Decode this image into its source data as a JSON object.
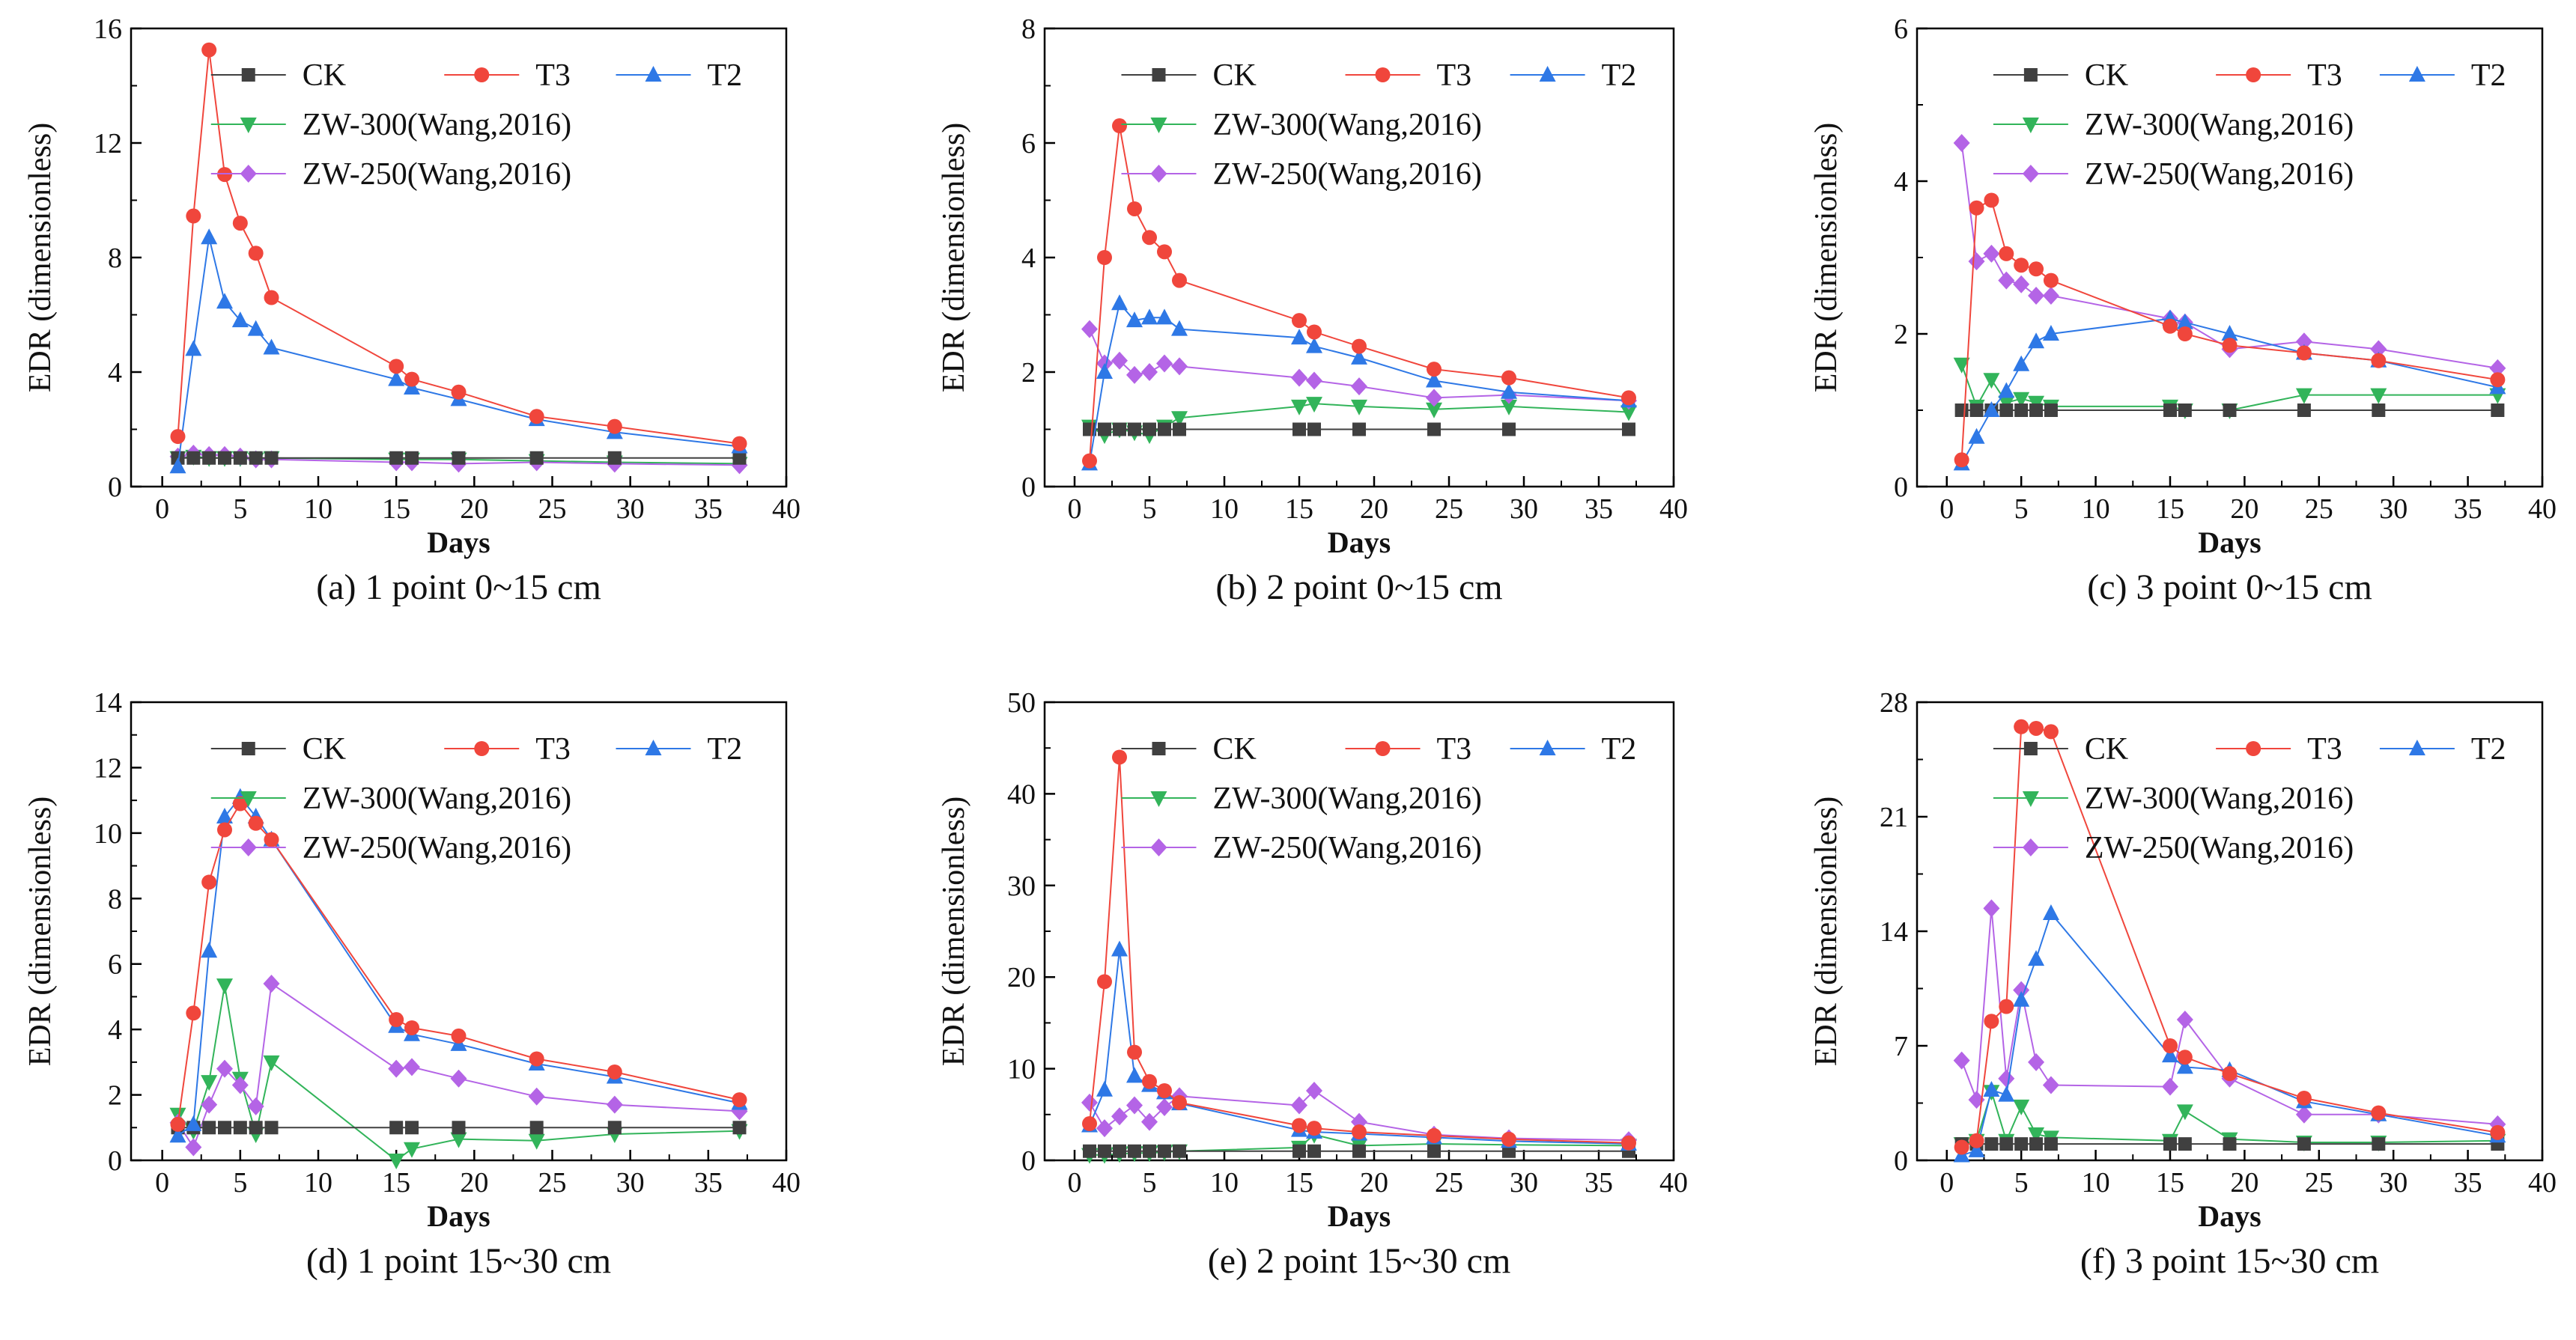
{
  "legend_labels": [
    "CK",
    "T3",
    "T2",
    "ZW-300(Wang,2016)",
    "ZW-250(Wang,2016)"
  ],
  "colors": {
    "CK": "#404040",
    "T3": "#f0463c",
    "T2": "#2e78e6",
    "ZW300": "#32b45a",
    "ZW250": "#b464e6"
  },
  "chart_data": [
    {
      "type": "line",
      "caption": "(a) 1 point 0~15 cm",
      "xlabel": "Days",
      "ylabel": "EDR (dimensionless)",
      "xlim": [
        -2,
        40
      ],
      "ylim": [
        0,
        16
      ],
      "xticks": [
        0,
        5,
        10,
        15,
        20,
        25,
        30,
        35,
        40
      ],
      "yticks": [
        0,
        4,
        8,
        12,
        16
      ],
      "series": [
        {
          "name": "CK",
          "x": [
            1,
            2,
            3,
            4,
            5,
            6,
            7,
            15,
            16,
            19,
            24,
            29,
            37
          ],
          "y": [
            1,
            1,
            1,
            1,
            1,
            1,
            1,
            1,
            1,
            1,
            1,
            1,
            1
          ]
        },
        {
          "name": "T3",
          "x": [
            1,
            2,
            3,
            4,
            5,
            6,
            7,
            15,
            16,
            19,
            24,
            29,
            37
          ],
          "y": [
            1.75,
            9.45,
            15.25,
            10.9,
            9.2,
            8.15,
            6.6,
            4.2,
            3.75,
            3.3,
            2.45,
            2.1,
            1.5
          ]
        },
        {
          "name": "T2",
          "x": [
            1,
            2,
            3,
            4,
            5,
            6,
            7,
            15,
            16,
            19,
            24,
            29,
            37
          ],
          "y": [
            0.7,
            4.8,
            8.7,
            6.45,
            5.8,
            5.5,
            4.85,
            3.75,
            3.45,
            3.05,
            2.35,
            1.9,
            1.4
          ]
        },
        {
          "name": "ZW-300(Wang,2016)",
          "x": [
            1,
            2,
            3,
            4,
            5,
            6,
            7,
            15,
            16,
            19,
            24,
            29,
            37
          ],
          "y": [
            1.0,
            1.05,
            1.0,
            1.0,
            1.0,
            0.95,
            1.0,
            0.95,
            0.95,
            0.95,
            0.9,
            0.85,
            0.8
          ]
        },
        {
          "name": "ZW-250(Wang,2016)",
          "x": [
            1,
            2,
            3,
            4,
            5,
            6,
            7,
            15,
            16,
            19,
            24,
            29,
            37
          ],
          "y": [
            1.05,
            1.15,
            1.1,
            1.1,
            1.05,
            0.95,
            0.95,
            0.85,
            0.85,
            0.8,
            0.85,
            0.8,
            0.75
          ]
        }
      ]
    },
    {
      "type": "line",
      "caption": "(b) 2 point 0~15 cm",
      "xlabel": "Days",
      "ylabel": "EDR (dimensionless)",
      "xlim": [
        -2,
        40
      ],
      "ylim": [
        0,
        8
      ],
      "xticks": [
        0,
        5,
        10,
        15,
        20,
        25,
        30,
        35,
        40
      ],
      "yticks": [
        0,
        2,
        4,
        6,
        8
      ],
      "series": [
        {
          "name": "CK",
          "x": [
            1,
            2,
            3,
            4,
            5,
            6,
            7,
            15,
            16,
            19,
            24,
            29,
            37
          ],
          "y": [
            1,
            1,
            1,
            1,
            1,
            1,
            1,
            1,
            1,
            1,
            1,
            1,
            1
          ]
        },
        {
          "name": "T3",
          "x": [
            1,
            2,
            3,
            4,
            5,
            6,
            7,
            15,
            16,
            19,
            24,
            29,
            37
          ],
          "y": [
            0.45,
            4.0,
            6.3,
            4.85,
            4.35,
            4.1,
            3.6,
            2.9,
            2.7,
            2.45,
            2.05,
            1.9,
            1.55
          ]
        },
        {
          "name": "T2",
          "x": [
            1,
            2,
            3,
            4,
            5,
            6,
            7,
            15,
            16,
            19,
            24,
            29,
            37
          ],
          "y": [
            0.4,
            2.0,
            3.2,
            2.9,
            2.95,
            2.95,
            2.75,
            2.6,
            2.45,
            2.25,
            1.85,
            1.65,
            1.5
          ]
        },
        {
          "name": "ZW-300(Wang,2016)",
          "x": [
            1,
            2,
            3,
            4,
            5,
            6,
            7,
            15,
            16,
            19,
            24,
            29,
            37
          ],
          "y": [
            1.05,
            0.9,
            1.0,
            0.95,
            0.9,
            1.05,
            1.2,
            1.4,
            1.45,
            1.4,
            1.35,
            1.4,
            1.3
          ]
        },
        {
          "name": "ZW-250(Wang,2016)",
          "x": [
            1,
            2,
            3,
            4,
            5,
            6,
            7,
            15,
            16,
            19,
            24,
            29,
            37
          ],
          "y": [
            2.75,
            2.15,
            2.2,
            1.95,
            2.0,
            2.15,
            2.1,
            1.9,
            1.85,
            1.75,
            1.55,
            1.6,
            1.5
          ]
        }
      ]
    },
    {
      "type": "line",
      "caption": "(c) 3 point 0~15 cm",
      "xlabel": "Days",
      "ylabel": "EDR (dimensionless)",
      "xlim": [
        -2,
        40
      ],
      "ylim": [
        0,
        6
      ],
      "xticks": [
        0,
        5,
        10,
        15,
        20,
        25,
        30,
        35,
        40
      ],
      "yticks": [
        0,
        2,
        4,
        6
      ],
      "series": [
        {
          "name": "CK",
          "x": [
            1,
            2,
            3,
            4,
            5,
            6,
            7,
            15,
            16,
            19,
            24,
            29,
            37
          ],
          "y": [
            1,
            1,
            1,
            1,
            1,
            1,
            1,
            1,
            1,
            1,
            1,
            1,
            1
          ]
        },
        {
          "name": "T3",
          "x": [
            1,
            2,
            3,
            4,
            5,
            6,
            7,
            15,
            16,
            19,
            24,
            29,
            37
          ],
          "y": [
            0.35,
            3.65,
            3.75,
            3.05,
            2.9,
            2.85,
            2.7,
            2.1,
            2.0,
            1.85,
            1.75,
            1.65,
            1.4
          ]
        },
        {
          "name": "T2",
          "x": [
            1,
            2,
            3,
            4,
            5,
            6,
            7,
            15,
            16,
            19,
            24,
            29,
            37
          ],
          "y": [
            0.3,
            0.65,
            1.0,
            1.25,
            1.6,
            1.9,
            2.0,
            2.2,
            2.15,
            2.0,
            1.75,
            1.65,
            1.3
          ]
        },
        {
          "name": "ZW-300(Wang,2016)",
          "x": [
            1,
            2,
            3,
            4,
            5,
            6,
            7,
            15,
            16,
            19,
            24,
            29,
            37
          ],
          "y": [
            1.6,
            1.05,
            1.4,
            1.1,
            1.15,
            1.1,
            1.05,
            1.05,
            1.0,
            1.0,
            1.2,
            1.2,
            1.2
          ]
        },
        {
          "name": "ZW-250(Wang,2016)",
          "x": [
            1,
            2,
            3,
            4,
            5,
            6,
            7,
            15,
            16,
            19,
            24,
            29,
            37
          ],
          "y": [
            4.5,
            2.95,
            3.05,
            2.7,
            2.65,
            2.5,
            2.5,
            2.2,
            2.15,
            1.8,
            1.9,
            1.8,
            1.55
          ]
        }
      ]
    },
    {
      "type": "line",
      "caption": "(d) 1 point 15~30 cm",
      "xlabel": "Days",
      "ylabel": "EDR (dimensionless)",
      "xlim": [
        -2,
        40
      ],
      "ylim": [
        0,
        14
      ],
      "xticks": [
        0,
        5,
        10,
        15,
        20,
        25,
        30,
        35,
        40
      ],
      "yticks": [
        0,
        2,
        4,
        6,
        8,
        10,
        12,
        14
      ],
      "series": [
        {
          "name": "CK",
          "x": [
            1,
            2,
            3,
            4,
            5,
            6,
            7,
            15,
            16,
            19,
            24,
            29,
            37
          ],
          "y": [
            1,
            1,
            1,
            1,
            1,
            1,
            1,
            1,
            1,
            1,
            1,
            1,
            1
          ]
        },
        {
          "name": "T3",
          "x": [
            1,
            2,
            3,
            4,
            5,
            6,
            7,
            15,
            16,
            19,
            24,
            29,
            37
          ],
          "y": [
            1.1,
            4.5,
            8.5,
            10.1,
            10.9,
            10.3,
            9.8,
            4.3,
            4.05,
            3.8,
            3.1,
            2.7,
            1.85
          ]
        },
        {
          "name": "T2",
          "x": [
            1,
            2,
            3,
            4,
            5,
            6,
            7,
            15,
            16,
            19,
            24,
            29,
            37
          ],
          "y": [
            0.75,
            1.1,
            6.4,
            10.5,
            11.1,
            10.5,
            9.8,
            4.1,
            3.85,
            3.55,
            2.95,
            2.55,
            1.75
          ]
        },
        {
          "name": "ZW-300(Wang,2016)",
          "x": [
            1,
            2,
            3,
            4,
            5,
            6,
            7,
            15,
            16,
            19,
            24,
            29,
            37
          ],
          "y": [
            1.4,
            0.9,
            2.4,
            5.35,
            2.5,
            0.8,
            3.0,
            0.0,
            0.35,
            0.65,
            0.6,
            0.8,
            0.9
          ]
        },
        {
          "name": "ZW-250(Wang,2016)",
          "x": [
            1,
            2,
            3,
            4,
            5,
            6,
            7,
            15,
            16,
            19,
            24,
            29,
            37
          ],
          "y": [
            1.15,
            0.4,
            1.7,
            2.8,
            2.3,
            1.65,
            5.4,
            2.8,
            2.85,
            2.5,
            1.95,
            1.7,
            1.5
          ]
        }
      ]
    },
    {
      "type": "line",
      "caption": "(e) 2 point 15~30 cm",
      "xlabel": "Days",
      "ylabel": "EDR (dimensionless)",
      "xlim": [
        -2,
        40
      ],
      "ylim": [
        0,
        50
      ],
      "xticks": [
        0,
        5,
        10,
        15,
        20,
        25,
        30,
        35,
        40
      ],
      "yticks": [
        0,
        10,
        20,
        30,
        40,
        50
      ],
      "series": [
        {
          "name": "CK",
          "x": [
            1,
            2,
            3,
            4,
            5,
            6,
            7,
            15,
            16,
            19,
            24,
            29,
            37
          ],
          "y": [
            1,
            1,
            1,
            1,
            1,
            1,
            1,
            1,
            1,
            1,
            1,
            1,
            1
          ]
        },
        {
          "name": "T3",
          "x": [
            1,
            2,
            3,
            4,
            5,
            6,
            7,
            15,
            16,
            19,
            24,
            29,
            37
          ],
          "y": [
            4.0,
            19.5,
            44.0,
            11.8,
            8.6,
            7.6,
            6.3,
            3.8,
            3.5,
            3.1,
            2.7,
            2.3,
            1.9
          ]
        },
        {
          "name": "T2",
          "x": [
            1,
            2,
            3,
            4,
            5,
            6,
            7,
            15,
            16,
            19,
            24,
            29,
            37
          ],
          "y": [
            3.8,
            7.7,
            23.0,
            9.2,
            8.2,
            7.4,
            6.2,
            3.3,
            3.1,
            2.9,
            2.5,
            2.1,
            1.8
          ]
        },
        {
          "name": "ZW-300(Wang,2016)",
          "x": [
            1,
            2,
            3,
            4,
            5,
            6,
            7,
            15,
            16,
            19,
            24,
            29,
            37
          ],
          "y": [
            0.6,
            0.6,
            0.7,
            0.8,
            0.8,
            0.9,
            1.0,
            1.4,
            2.8,
            1.6,
            1.8,
            1.7,
            1.6
          ]
        },
        {
          "name": "ZW-250(Wang,2016)",
          "x": [
            1,
            2,
            3,
            4,
            5,
            6,
            7,
            15,
            16,
            19,
            24,
            29,
            37
          ],
          "y": [
            6.3,
            3.5,
            4.8,
            6.0,
            4.2,
            5.8,
            7.0,
            6.0,
            7.6,
            4.2,
            2.8,
            2.4,
            2.2
          ]
        }
      ]
    },
    {
      "type": "line",
      "caption": "(f) 3 point 15~30 cm",
      "xlabel": "Days",
      "ylabel": "EDR (dimensionless)",
      "xlim": [
        -2,
        40
      ],
      "ylim": [
        0,
        28
      ],
      "xticks": [
        0,
        5,
        10,
        15,
        20,
        25,
        30,
        35,
        40
      ],
      "yticks": [
        0,
        7,
        14,
        21,
        28
      ],
      "series": [
        {
          "name": "CK",
          "x": [
            1,
            2,
            3,
            4,
            5,
            6,
            7,
            15,
            16,
            19,
            24,
            29,
            37
          ],
          "y": [
            1,
            1,
            1,
            1,
            1,
            1,
            1,
            1,
            1,
            1,
            1,
            1,
            1
          ]
        },
        {
          "name": "T3",
          "x": [
            1,
            2,
            3,
            4,
            5,
            6,
            7,
            15,
            16,
            19,
            24,
            29,
            37
          ],
          "y": [
            0.8,
            1.2,
            8.5,
            9.4,
            26.5,
            26.4,
            26.2,
            7.0,
            6.3,
            5.3,
            3.8,
            2.9,
            1.7
          ]
        },
        {
          "name": "T2",
          "x": [
            1,
            2,
            3,
            4,
            5,
            6,
            7,
            15,
            16,
            19,
            24,
            29,
            37
          ],
          "y": [
            0.3,
            0.6,
            4.3,
            4.0,
            9.8,
            12.3,
            15.1,
            6.4,
            5.7,
            5.5,
            3.6,
            2.8,
            1.5
          ]
        },
        {
          "name": "ZW-300(Wang,2016)",
          "x": [
            1,
            2,
            3,
            4,
            5,
            6,
            7,
            15,
            16,
            19,
            24,
            29,
            37
          ],
          "y": [
            1.0,
            1.2,
            4.2,
            1.2,
            3.3,
            1.6,
            1.4,
            1.2,
            3.0,
            1.3,
            1.1,
            1.1,
            1.2
          ]
        },
        {
          "name": "ZW-250(Wang,2016)",
          "x": [
            1,
            2,
            3,
            4,
            5,
            6,
            7,
            15,
            16,
            19,
            24,
            29,
            37
          ],
          "y": [
            6.1,
            3.7,
            15.4,
            5.0,
            10.4,
            6.0,
            4.6,
            4.5,
            8.6,
            5.0,
            2.8,
            2.8,
            2.2
          ]
        }
      ]
    }
  ]
}
